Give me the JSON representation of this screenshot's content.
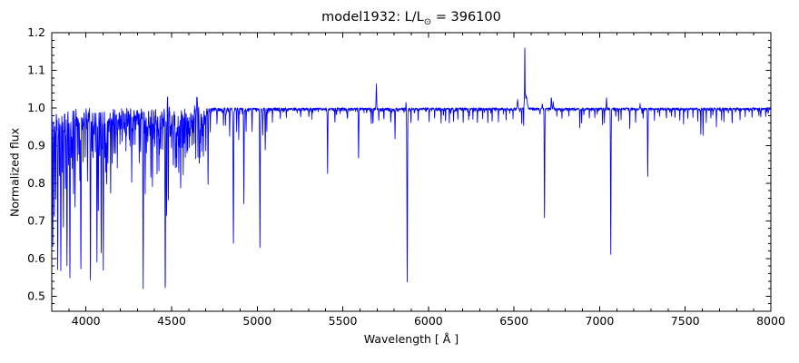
{
  "figure": {
    "background": "#ffffff",
    "axis_color": "#000000"
  },
  "chart_data": {
    "type": "line",
    "title": "model1932: L/L⊙ = 396100",
    "title_parts": {
      "prefix": "model1932: L/L",
      "sub": "⊙",
      "suffix": " = 396100"
    },
    "xlabel": "Wavelength [ Å ]",
    "ylabel": "Normalized flux",
    "xlim": [
      3800,
      8000
    ],
    "ylim": [
      0.46,
      1.2
    ],
    "xticks": [
      "4000",
      "4500",
      "5000",
      "5500",
      "6000",
      "6500",
      "7000",
      "7500",
      "8000"
    ],
    "yticks": [
      "0.5",
      "0.6",
      "0.7",
      "0.8",
      "0.9",
      "1.0",
      "1.1",
      "1.2"
    ],
    "x_minor_step": 100,
    "y_minor_step": 0.02,
    "grid": false,
    "legend": null,
    "line_color": "#0000ff",
    "continuum": 1.0,
    "seed": 1932,
    "noise_regions": [
      [
        3800,
        4700,
        0.016
      ],
      [
        4700,
        4760,
        0.006
      ],
      [
        4760,
        5890,
        0.0045
      ],
      [
        5890,
        8000,
        0.0035
      ]
    ],
    "line_forest": [
      {
        "range": [
          3800,
          4700
        ],
        "avg_spacing": 6,
        "max_depth": 0.14,
        "sigma": [
          0.8,
          1.8
        ]
      },
      {
        "range": [
          4700,
          5890
        ],
        "avg_spacing": 45,
        "max_depth": 0.035,
        "sigma": [
          0.8,
          1.6
        ]
      },
      {
        "range": [
          5890,
          8000
        ],
        "avg_spacing": 55,
        "max_depth": 0.028,
        "sigma": [
          0.8,
          1.6
        ]
      }
    ],
    "absorption_lines": [
      [
        3806,
        0.65,
        1.5
      ],
      [
        3815,
        0.73,
        1.3
      ],
      [
        3823,
        0.77,
        1.3
      ],
      [
        3835,
        0.6,
        1.6
      ],
      [
        3845,
        0.82,
        1.2
      ],
      [
        3853,
        0.58,
        1.6
      ],
      [
        3862,
        0.84,
        1.2
      ],
      [
        3868,
        0.7,
        1.4
      ],
      [
        3880,
        0.79,
        1.3
      ],
      [
        3889,
        0.58,
        1.6
      ],
      [
        3898,
        0.86,
        1.2
      ],
      [
        3906,
        0.57,
        1.6
      ],
      [
        3914,
        0.88,
        1.2
      ],
      [
        3920,
        0.85,
        1.2
      ],
      [
        3927,
        0.78,
        1.3
      ],
      [
        3936,
        0.76,
        1.3
      ],
      [
        3950,
        0.87,
        1.2
      ],
      [
        3958,
        0.88,
        1.2
      ],
      [
        3964,
        0.82,
        1.3
      ],
      [
        3970,
        0.58,
        1.6
      ],
      [
        3983,
        0.9,
        1.2
      ],
      [
        3995,
        0.88,
        1.2
      ],
      [
        4009,
        0.83,
        1.3
      ],
      [
        4026,
        0.56,
        1.6
      ],
      [
        4035,
        0.9,
        1.2
      ],
      [
        4041,
        0.87,
        1.2
      ],
      [
        4055,
        0.9,
        1.2
      ],
      [
        4064,
        0.6,
        1.5
      ],
      [
        4072,
        0.74,
        1.3
      ],
      [
        4080,
        0.88,
        1.2
      ],
      [
        4089,
        0.64,
        1.4
      ],
      [
        4101,
        0.59,
        1.6
      ],
      [
        4110,
        0.88,
        1.2
      ],
      [
        4116,
        0.84,
        1.2
      ],
      [
        4121,
        0.8,
        1.3
      ],
      [
        4128,
        0.87,
        1.2
      ],
      [
        4144,
        0.78,
        1.3
      ],
      [
        4153,
        0.855,
        1.2
      ],
      [
        4164,
        0.91,
        1.2
      ],
      [
        4171,
        0.89,
        1.2
      ],
      [
        4183,
        0.86,
        1.2
      ],
      [
        4199,
        0.94,
        1.1
      ],
      [
        4211,
        0.92,
        1.1
      ],
      [
        4233,
        0.91,
        1.2
      ],
      [
        4253,
        0.93,
        1.1
      ],
      [
        4267,
        0.82,
        1.3
      ],
      [
        4276,
        0.92,
        1.1
      ],
      [
        4287,
        0.93,
        1.1
      ],
      [
        4311,
        0.87,
        1.2
      ],
      [
        4318,
        0.89,
        1.2
      ],
      [
        4334,
        0.555,
        1.7
      ],
      [
        4346,
        0.8,
        1.3
      ],
      [
        4360,
        0.93,
        1.1
      ],
      [
        4379,
        0.83,
        1.3
      ],
      [
        4388,
        0.8,
        1.3
      ],
      [
        4400,
        0.92,
        1.1
      ],
      [
        4415,
        0.84,
        1.2
      ],
      [
        4426,
        0.855,
        1.2
      ],
      [
        4437,
        0.9,
        1.1
      ],
      [
        4448,
        0.92,
        1.1
      ],
      [
        4463,
        0.53,
        1.7
      ],
      [
        4471,
        0.72,
        1.3
      ],
      [
        4481,
        0.76,
        1.3
      ],
      [
        4499,
        0.91,
        1.1
      ],
      [
        4510,
        0.86,
        1.2
      ],
      [
        4522,
        0.84,
        1.2
      ],
      [
        4530,
        0.85,
        1.2
      ],
      [
        4542,
        0.83,
        1.2
      ],
      [
        4553,
        0.79,
        1.3
      ],
      [
        4568,
        0.83,
        1.2
      ],
      [
        4580,
        0.89,
        1.1
      ],
      [
        4590,
        0.88,
        1.1
      ],
      [
        4604,
        0.91,
        1.1
      ],
      [
        4620,
        0.9,
        1.1
      ],
      [
        4631,
        0.89,
        1.1
      ],
      [
        4641,
        0.86,
        1.2
      ],
      [
        4654,
        0.86,
        1.2
      ],
      [
        4662,
        0.87,
        1.2
      ],
      [
        4676,
        0.9,
        1.1
      ],
      [
        4686,
        0.88,
        1.2
      ],
      [
        4700,
        0.89,
        1.2
      ],
      [
        4713,
        0.8,
        1.3
      ],
      [
        4726,
        0.94,
        1.1
      ],
      [
        4765,
        0.96,
        1.1
      ],
      [
        4803,
        0.955,
        1.1
      ],
      [
        4815,
        0.96,
        1.1
      ],
      [
        4839,
        0.93,
        1.2
      ],
      [
        4861,
        0.645,
        1.7
      ],
      [
        4880,
        0.945,
        1.1
      ],
      [
        4892,
        0.92,
        1.2
      ],
      [
        4922,
        0.75,
        1.4
      ],
      [
        4935,
        0.94,
        1.1
      ],
      [
        4970,
        0.94,
        1.2
      ],
      [
        5016,
        0.63,
        1.5
      ],
      [
        5032,
        0.93,
        1.2
      ],
      [
        5047,
        0.89,
        1.3
      ],
      [
        5056,
        0.94,
        1.1
      ],
      [
        5089,
        0.97,
        1.1
      ],
      [
        5135,
        0.975,
        1.1
      ],
      [
        5170,
        0.98,
        1.1
      ],
      [
        5254,
        0.98,
        1.1
      ],
      [
        5320,
        0.98,
        1.1
      ],
      [
        5411,
        0.83,
        1.4
      ],
      [
        5454,
        0.965,
        1.1
      ],
      [
        5527,
        0.975,
        1.1
      ],
      [
        5592,
        0.87,
        1.4
      ],
      [
        5666,
        0.965,
        1.1
      ],
      [
        5676,
        0.96,
        1.1
      ],
      [
        5710,
        0.97,
        1.1
      ],
      [
        5740,
        0.972,
        1.1
      ],
      [
        5780,
        0.965,
        1.1
      ],
      [
        5805,
        0.925,
        1.2
      ],
      [
        5876,
        0.545,
        1.7
      ],
      [
        5898,
        0.965,
        1.1
      ],
      [
        5940,
        0.97,
        1.0
      ],
      [
        6004,
        0.97,
        1.0
      ],
      [
        6036,
        0.975,
        1.0
      ],
      [
        6074,
        0.962,
        1.0
      ],
      [
        6100,
        0.968,
        1.0
      ],
      [
        6122,
        0.962,
        1.0
      ],
      [
        6147,
        0.966,
        1.0
      ],
      [
        6172,
        0.972,
        1.0
      ],
      [
        6203,
        0.966,
        1.0
      ],
      [
        6235,
        0.972,
        1.0
      ],
      [
        6260,
        0.975,
        1.0
      ],
      [
        6286,
        0.962,
        1.0
      ],
      [
        6317,
        0.975,
        1.0
      ],
      [
        6347,
        0.962,
        1.0
      ],
      [
        6372,
        0.968,
        1.0
      ],
      [
        6409,
        0.968,
        1.0
      ],
      [
        6454,
        0.972,
        1.0
      ],
      [
        6494,
        0.976,
        1.0
      ],
      [
        6545,
        0.962,
        1.2
      ],
      [
        6556,
        0.945,
        0.9
      ],
      [
        6678,
        0.71,
        1.5
      ],
      [
        6750,
        0.98,
        1.0
      ],
      [
        6780,
        0.978,
        1.0
      ],
      [
        6820,
        0.98,
        1.0
      ],
      [
        6884,
        0.952,
        1.1
      ],
      [
        6895,
        0.962,
        1.0
      ],
      [
        6940,
        0.975,
        1.0
      ],
      [
        6972,
        0.978,
        1.0
      ],
      [
        7017,
        0.958,
        1.1
      ],
      [
        7028,
        0.965,
        1.0
      ],
      [
        7065,
        0.615,
        1.5
      ],
      [
        7111,
        0.968,
        1.0
      ],
      [
        7125,
        0.974,
        1.0
      ],
      [
        7176,
        0.948,
        1.1
      ],
      [
        7210,
        0.963,
        1.0
      ],
      [
        7254,
        0.974,
        1.0
      ],
      [
        7281,
        0.82,
        1.4
      ],
      [
        7320,
        0.974,
        1.0
      ],
      [
        7350,
        0.978,
        1.0
      ],
      [
        7390,
        0.974,
        1.0
      ],
      [
        7420,
        0.978,
        1.0
      ],
      [
        7440,
        0.976,
        1.0
      ],
      [
        7468,
        0.97,
        1.0
      ],
      [
        7490,
        0.962,
        1.1
      ],
      [
        7515,
        0.974,
        1.0
      ],
      [
        7545,
        0.978,
        1.0
      ],
      [
        7573,
        0.97,
        1.0
      ],
      [
        7591,
        0.932,
        1.1
      ],
      [
        7604,
        0.933,
        1.1
      ],
      [
        7623,
        0.968,
        1.0
      ],
      [
        7650,
        0.978,
        1.0
      ],
      [
        7682,
        0.957,
        1.1
      ],
      [
        7712,
        0.975,
        1.0
      ],
      [
        7726,
        0.966,
        1.0
      ],
      [
        7774,
        0.96,
        1.1
      ],
      [
        7820,
        0.972,
        1.0
      ],
      [
        7850,
        0.98,
        1.0
      ],
      [
        7890,
        0.978,
        1.0
      ],
      [
        7930,
        0.982,
        1.0
      ],
      [
        7970,
        0.98,
        1.0
      ]
    ],
    "emission_lines": [
      [
        4476,
        1.05,
        1.0
      ],
      [
        4490,
        1.038,
        1.0
      ],
      [
        4634,
        1.02,
        6
      ],
      [
        4645,
        1.03,
        9
      ],
      [
        4647,
        1.05,
        1.2
      ],
      [
        5696,
        1.065,
        1.6
      ],
      [
        5869,
        1.018,
        1.0
      ],
      [
        6521,
        1.025,
        2.2
      ],
      [
        6563,
        1.16,
        1.3
      ],
      [
        6568,
        1.04,
        7
      ],
      [
        6665,
        1.012,
        1.5
      ],
      [
        6718,
        1.03,
        1.8
      ],
      [
        6730,
        1.028,
        1.8
      ],
      [
        7040,
        1.028,
        1.5
      ],
      [
        7236,
        1.012,
        1.5
      ]
    ]
  }
}
